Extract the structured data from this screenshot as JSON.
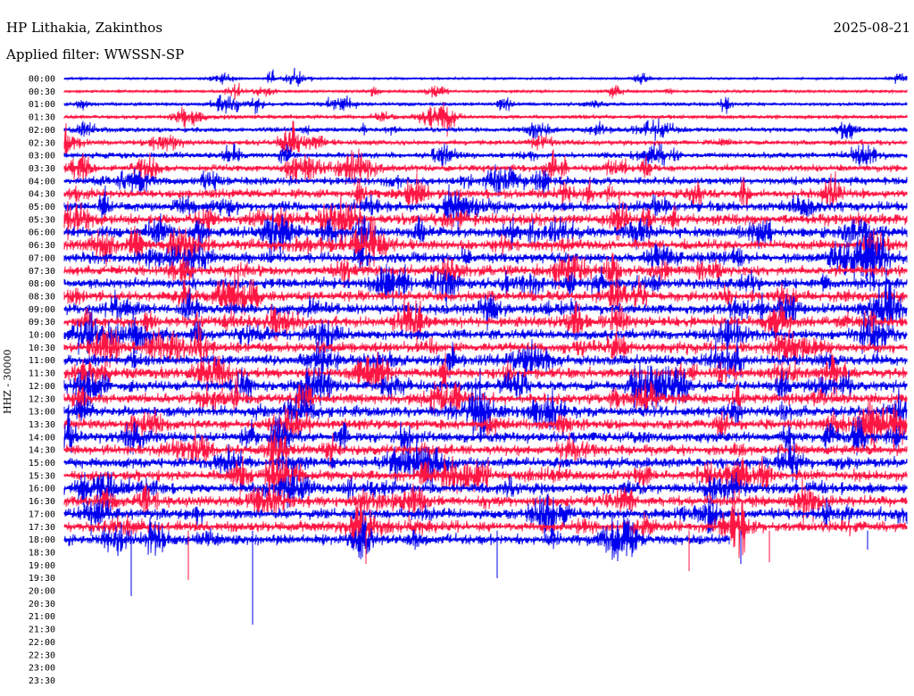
{
  "header": {
    "station": "HP Lithakia, Zakinthos",
    "date": "2025-08-21",
    "filter": "Applied filter: WWSSN-SP"
  },
  "chart_data": {
    "type": "line",
    "ylabel": "HHZ - 30000",
    "y_tick_labels": [
      "00:00",
      "00:30",
      "01:00",
      "01:30",
      "02:00",
      "02:30",
      "03:00",
      "03:30",
      "04:00",
      "04:30",
      "05:00",
      "05:30",
      "06:00",
      "06:30",
      "07:00",
      "07:30",
      "08:00",
      "08:30",
      "09:00",
      "09:30",
      "10:00",
      "10:30",
      "11:00",
      "11:30",
      "12:00",
      "12:30",
      "13:00",
      "13:30",
      "14:00",
      "14:30",
      "15:00",
      "15:30",
      "16:00",
      "16:30",
      "17:00",
      "17:30",
      "18:00",
      "18:30",
      "19:00",
      "19:30",
      "20:00",
      "20:30",
      "21:00",
      "21:30",
      "22:00",
      "22:30",
      "23:00",
      "23:30"
    ],
    "rows_recorded": 37,
    "last_row_fraction": 0.79,
    "row_minutes": 30,
    "trace_colors": [
      "#0000ee",
      "#ff1744"
    ],
    "grid": false
  }
}
